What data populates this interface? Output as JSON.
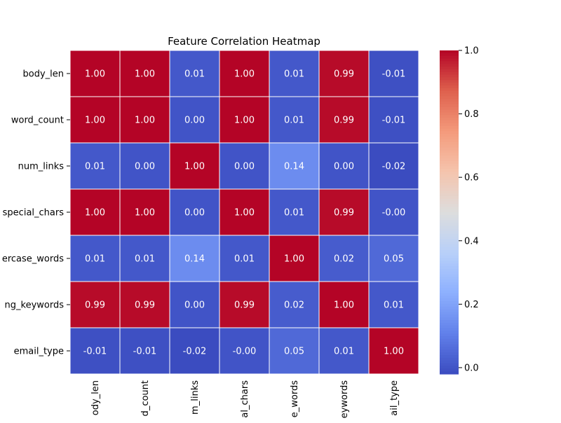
{
  "chart_data": {
    "type": "heatmap",
    "title": "Feature Correlation Heatmap",
    "row_labels": [
      "body_len",
      "word_count",
      "num_links",
      "special_chars",
      "uppercase_words",
      "phishing_keywords",
      "email_type"
    ],
    "col_labels": [
      "body_len",
      "word_count",
      "num_links",
      "special_chars",
      "uppercase_words",
      "phishing_keywords",
      "email_type"
    ],
    "row_labels_visible": [
      "body_len",
      "word_count",
      "num_links",
      "special_chars",
      "ercase_words",
      "ng_keywords",
      "email_type"
    ],
    "col_labels_visible": [
      "ody_len",
      "d_count",
      "m_links",
      "al_chars",
      "e_words",
      "eywords",
      "ail_type"
    ],
    "values": [
      [
        1.0,
        1.0,
        0.01,
        1.0,
        0.01,
        0.99,
        -0.01
      ],
      [
        1.0,
        1.0,
        0.0,
        1.0,
        0.01,
        0.99,
        -0.01
      ],
      [
        0.01,
        0.0,
        1.0,
        0.0,
        0.14,
        0.0,
        -0.02
      ],
      [
        1.0,
        1.0,
        0.0,
        1.0,
        0.01,
        0.99,
        -0.0
      ],
      [
        0.01,
        0.01,
        0.14,
        0.01,
        1.0,
        0.02,
        0.05
      ],
      [
        0.99,
        0.99,
        0.0,
        0.99,
        0.02,
        1.0,
        0.01
      ],
      [
        -0.01,
        -0.01,
        -0.02,
        -0.0,
        0.05,
        0.01,
        1.0
      ]
    ],
    "cell_labels": [
      [
        "1.00",
        "1.00",
        "0.01",
        "1.00",
        "0.01",
        "0.99",
        "-0.01"
      ],
      [
        "1.00",
        "1.00",
        "0.00",
        "1.00",
        "0.01",
        "0.99",
        "-0.01"
      ],
      [
        "0.01",
        "0.00",
        "1.00",
        "0.00",
        "0.14",
        "0.00",
        "-0.02"
      ],
      [
        "1.00",
        "1.00",
        "0.00",
        "1.00",
        "0.01",
        "0.99",
        "-0.00"
      ],
      [
        "0.01",
        "0.01",
        "0.14",
        "0.01",
        "1.00",
        "0.02",
        "0.05"
      ],
      [
        "0.99",
        "0.99",
        "0.00",
        "0.99",
        "0.02",
        "1.00",
        "0.01"
      ],
      [
        "-0.01",
        "-0.01",
        "-0.02",
        "-0.00",
        "0.05",
        "0.01",
        "1.00"
      ]
    ],
    "colormap": "coolwarm",
    "color_range": [
      -0.02,
      1.0
    ],
    "colorbar": {
      "ticks": [
        0.0,
        0.2,
        0.4,
        0.6,
        0.8,
        1.0
      ],
      "tick_labels": [
        "0.0",
        "0.2",
        "0.4",
        "0.6",
        "0.8",
        "1.0"
      ]
    },
    "xlabel": "",
    "ylabel": "",
    "grid": false,
    "legend": "colorbar-right"
  }
}
